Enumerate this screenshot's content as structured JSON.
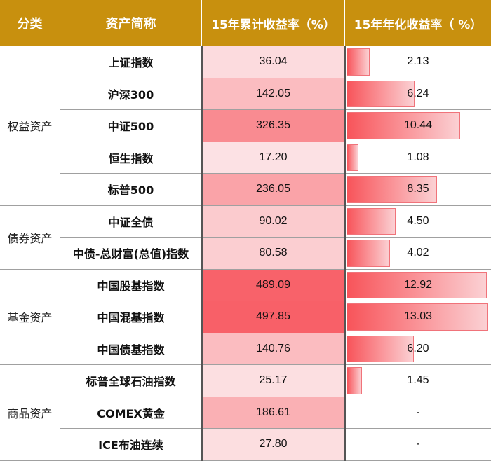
{
  "header": {
    "category": "分类",
    "name": "资产简称",
    "cumulative": "15年累计收益率（%）",
    "annualized": "15年年化收益率（ %）"
  },
  "colors": {
    "header_bg": "#c8900e",
    "bar_strong": "#f8545a",
    "bar_light": "#fbd1d4"
  },
  "groups": [
    {
      "label": "权益资产",
      "rows": 5
    },
    {
      "label": "债券资产",
      "rows": 2
    },
    {
      "label": "基金资产",
      "rows": 3
    },
    {
      "label": "商品资产",
      "rows": 3
    }
  ],
  "chart_data": {
    "type": "table",
    "columns": [
      "分类",
      "资产简称",
      "15年累计收益率（%）",
      "15年年化收益率（ %）"
    ],
    "rows": [
      {
        "category": "权益资产",
        "name": "上证指数",
        "cumulative": "36.04",
        "annualized": "2.13",
        "annualized_value": 2.13
      },
      {
        "category": "权益资产",
        "name": "沪深300",
        "cumulative": "142.05",
        "annualized": "6.24",
        "annualized_value": 6.24
      },
      {
        "category": "权益资产",
        "name": "中证500",
        "cumulative": "326.35",
        "annualized": "10.44",
        "annualized_value": 10.44
      },
      {
        "category": "权益资产",
        "name": "恒生指数",
        "cumulative": "17.20",
        "annualized": "1.08",
        "annualized_value": 1.08
      },
      {
        "category": "权益资产",
        "name": "标普500",
        "cumulative": "236.05",
        "annualized": "8.35",
        "annualized_value": 8.35
      },
      {
        "category": "债券资产",
        "name": "中证全债",
        "cumulative": "90.02",
        "annualized": "4.50",
        "annualized_value": 4.5
      },
      {
        "category": "债券资产",
        "name": "中债-总财富(总值)指数",
        "cumulative": "80.58",
        "annualized": "4.02",
        "annualized_value": 4.02
      },
      {
        "category": "基金资产",
        "name": "中国股基指数",
        "cumulative": "489.09",
        "annualized": "12.92",
        "annualized_value": 12.92
      },
      {
        "category": "基金资产",
        "name": "中国混基指数",
        "cumulative": "497.85",
        "annualized": "13.03",
        "annualized_value": 13.03
      },
      {
        "category": "基金资产",
        "name": "中国债基指数",
        "cumulative": "140.76",
        "annualized": "6.20",
        "annualized_value": 6.2
      },
      {
        "category": "商品资产",
        "name": "标普全球石油指数",
        "cumulative": "25.17",
        "annualized": "1.45",
        "annualized_value": 1.45
      },
      {
        "category": "商品资产",
        "name": "COMEX黄金",
        "cumulative": "186.61",
        "annualized": "-",
        "annualized_value": null
      },
      {
        "category": "商品资产",
        "name": "ICE布油连续",
        "cumulative": "27.80",
        "annualized": "-",
        "annualized_value": null
      }
    ],
    "cumulative_max": 497.85,
    "annualized_max": 13.03
  }
}
